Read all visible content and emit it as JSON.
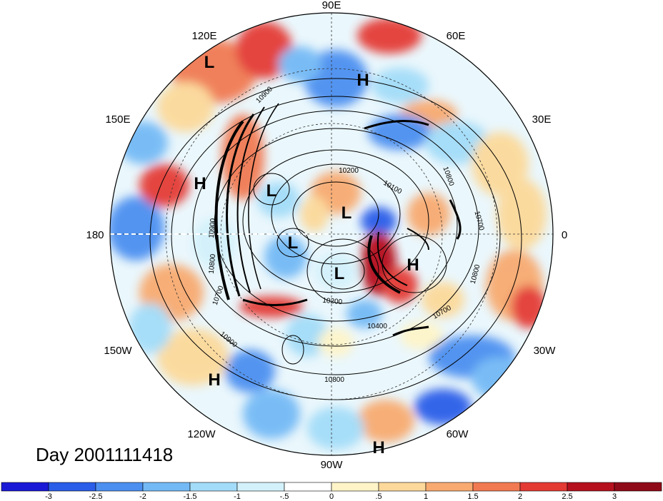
{
  "title": "Day 2001111418",
  "longitude_labels": [
    "90E",
    "60E",
    "30E",
    "0",
    "30W",
    "60W",
    "90W",
    "120W",
    "150W",
    "180",
    "150E",
    "120E"
  ],
  "pressure_centers": [
    {
      "type": "L"
    },
    {
      "type": "H"
    },
    {
      "type": "H"
    },
    {
      "type": "L"
    },
    {
      "type": "L"
    },
    {
      "type": "L"
    },
    {
      "type": "L"
    },
    {
      "type": "H"
    },
    {
      "type": "H"
    },
    {
      "type": "H"
    }
  ],
  "contour_labels": [
    "10900",
    "10200",
    "10100",
    "10800",
    "10700",
    "10900",
    "10800",
    "10700",
    "10200",
    "10400",
    "10700",
    "10800",
    "10900",
    "10800"
  ],
  "colorbar": {
    "tick_labels": [
      "-3",
      "-2.5",
      "-2",
      "-1.5",
      "-1",
      "-.5",
      "0",
      ".5",
      "1",
      "1.5",
      "2",
      "2.5",
      "3"
    ],
    "colors": [
      "#1a1ad6",
      "#2a5de8",
      "#4b8ff0",
      "#73b9f5",
      "#a3dcf8",
      "#d3f1fb",
      "#ffffff",
      "#fef4c8",
      "#fcd99a",
      "#f8aa70",
      "#f17a52",
      "#e43a34",
      "#b5101d",
      "#8f0a18"
    ]
  }
}
